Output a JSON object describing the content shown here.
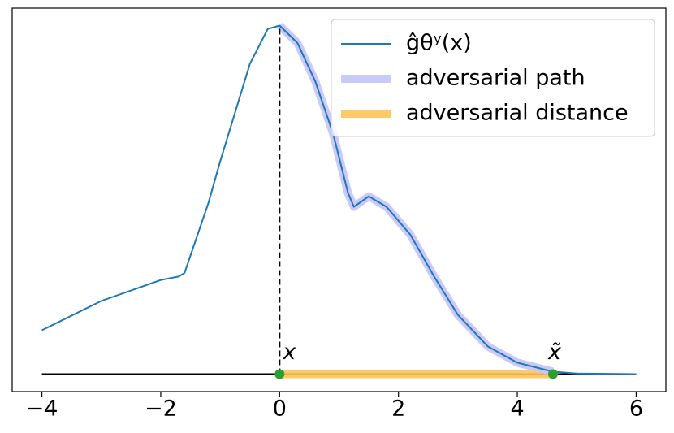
{
  "chart_data": {
    "type": "line",
    "xlim": [
      -4.5,
      6.5
    ],
    "ylim": [
      -0.05,
      1.05
    ],
    "xticks": [
      {
        "value": -4,
        "label": "−4"
      },
      {
        "value": -2,
        "label": "−2"
      },
      0,
      2,
      4,
      6
    ],
    "series": [
      {
        "name": "ĝθʸ(x)",
        "color": "#1f77b4",
        "width": 2,
        "x": [
          -4,
          -3,
          -2,
          -1.7,
          -1.6,
          -1.2,
          -1,
          -0.5,
          -0.2,
          0,
          0.3,
          0.6,
          0.9,
          1.15,
          1.25,
          1.5,
          1.8,
          2.2,
          2.6,
          3,
          3.5,
          4,
          4.6,
          5,
          6
        ],
        "values": [
          0.126,
          0.21,
          0.27,
          0.28,
          0.29,
          0.49,
          0.61,
          0.89,
          0.99,
          1.0,
          0.95,
          0.84,
          0.69,
          0.52,
          0.48,
          0.51,
          0.48,
          0.4,
          0.28,
          0.17,
          0.08,
          0.033,
          0.007,
          0.002,
          0
        ]
      },
      {
        "name": "adversarial path",
        "color": "#c4c4f7",
        "width": 10,
        "x": [
          0,
          0.3,
          0.6,
          0.9,
          1.15,
          1.25,
          1.5,
          1.8,
          2.2,
          2.6,
          3,
          3.5,
          4,
          4.6
        ],
        "values": [
          1.0,
          0.95,
          0.84,
          0.69,
          0.52,
          0.48,
          0.51,
          0.48,
          0.4,
          0.28,
          0.17,
          0.08,
          0.033,
          0.007
        ]
      },
      {
        "name": "adversarial distance",
        "color": "#fdc458",
        "width": 10,
        "x": [
          0,
          4.6
        ],
        "values": [
          0,
          0
        ]
      }
    ],
    "baseline": {
      "x": [
        -4,
        6
      ],
      "values": [
        0,
        0
      ],
      "color": "#000000"
    },
    "markers": [
      {
        "x": 0,
        "y": 0,
        "label": "x",
        "color": "#2ca02c"
      },
      {
        "x": 4.6,
        "y": 0,
        "label": "x̃",
        "color": "#2ca02c"
      }
    ],
    "legend": "upper right"
  }
}
